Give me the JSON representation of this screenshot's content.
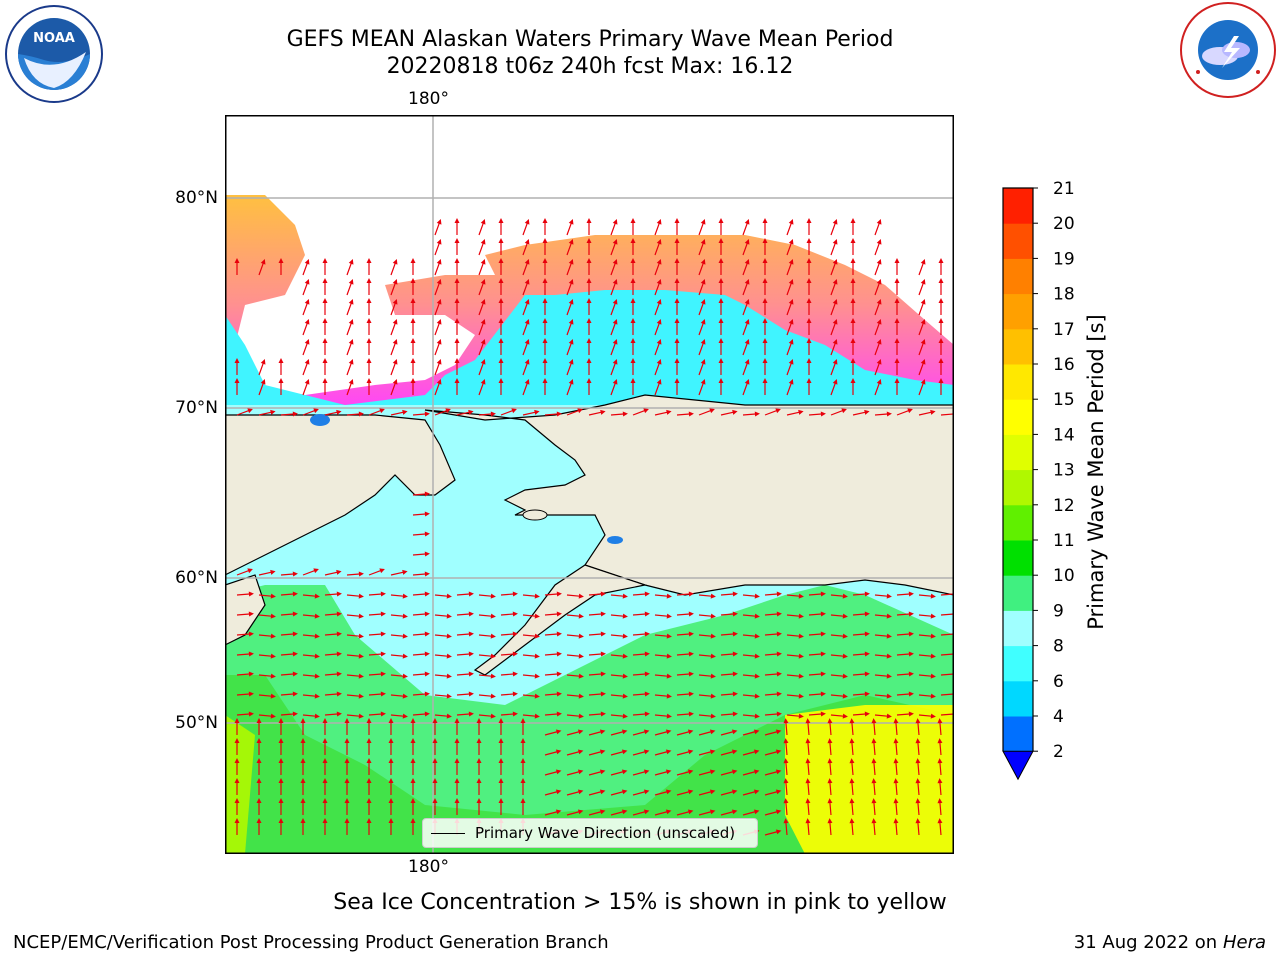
{
  "header": {
    "title_line1": "GEFS MEAN Alaskan Waters Primary Wave Mean Period",
    "title_line2": "20220818 t06z 240h fcst   Max: 16.12"
  },
  "logos": {
    "left": {
      "name": "noaa-logo",
      "text": "NOAA",
      "ring_text": "NATIONAL OCEANIC AND ATMOSPHERIC ADMINISTRATION · U.S. DEPARTMENT OF COMMERCE"
    },
    "right": {
      "name": "nws-logo",
      "ring_text": "NATIONAL WEATHER SERVICE"
    }
  },
  "map": {
    "longitude_labels": {
      "top": "180°",
      "bottom": "180°"
    },
    "latitude_labels": [
      "80°N",
      "70°N",
      "60°N",
      "50°N"
    ],
    "legend_label": "Primary Wave Direction (unscaled)",
    "colors": {
      "land": "#efecdc",
      "ocean_boundary": "#000000",
      "arrows": "#e8000b",
      "gridlines": "#b0b0b0"
    }
  },
  "colorbar": {
    "label": "Primary Wave Mean Period [s]",
    "ticks": [
      "2",
      "4",
      "6",
      "8",
      "9",
      "10",
      "11",
      "12",
      "13",
      "14",
      "15",
      "16",
      "17",
      "18",
      "19",
      "20",
      "21"
    ],
    "colors": [
      "#0070ff",
      "#00d8ff",
      "#40ffff",
      "#a0ffff",
      "#40f080",
      "#00e000",
      "#60f000",
      "#b0f800",
      "#e0ff00",
      "#ffff00",
      "#ffe800",
      "#ffc000",
      "#ffa000",
      "#ff8000",
      "#ff5000",
      "#ff2000"
    ],
    "min_arrow_color": "#0000ff"
  },
  "note": "Sea Ice Concentration > 15% is shown in pink to yellow",
  "footer": {
    "left": "NCEP/EMC/Verification Post Processing Product Generation Branch",
    "right_date": "31 Aug 2022 on",
    "right_host": "Hera"
  }
}
